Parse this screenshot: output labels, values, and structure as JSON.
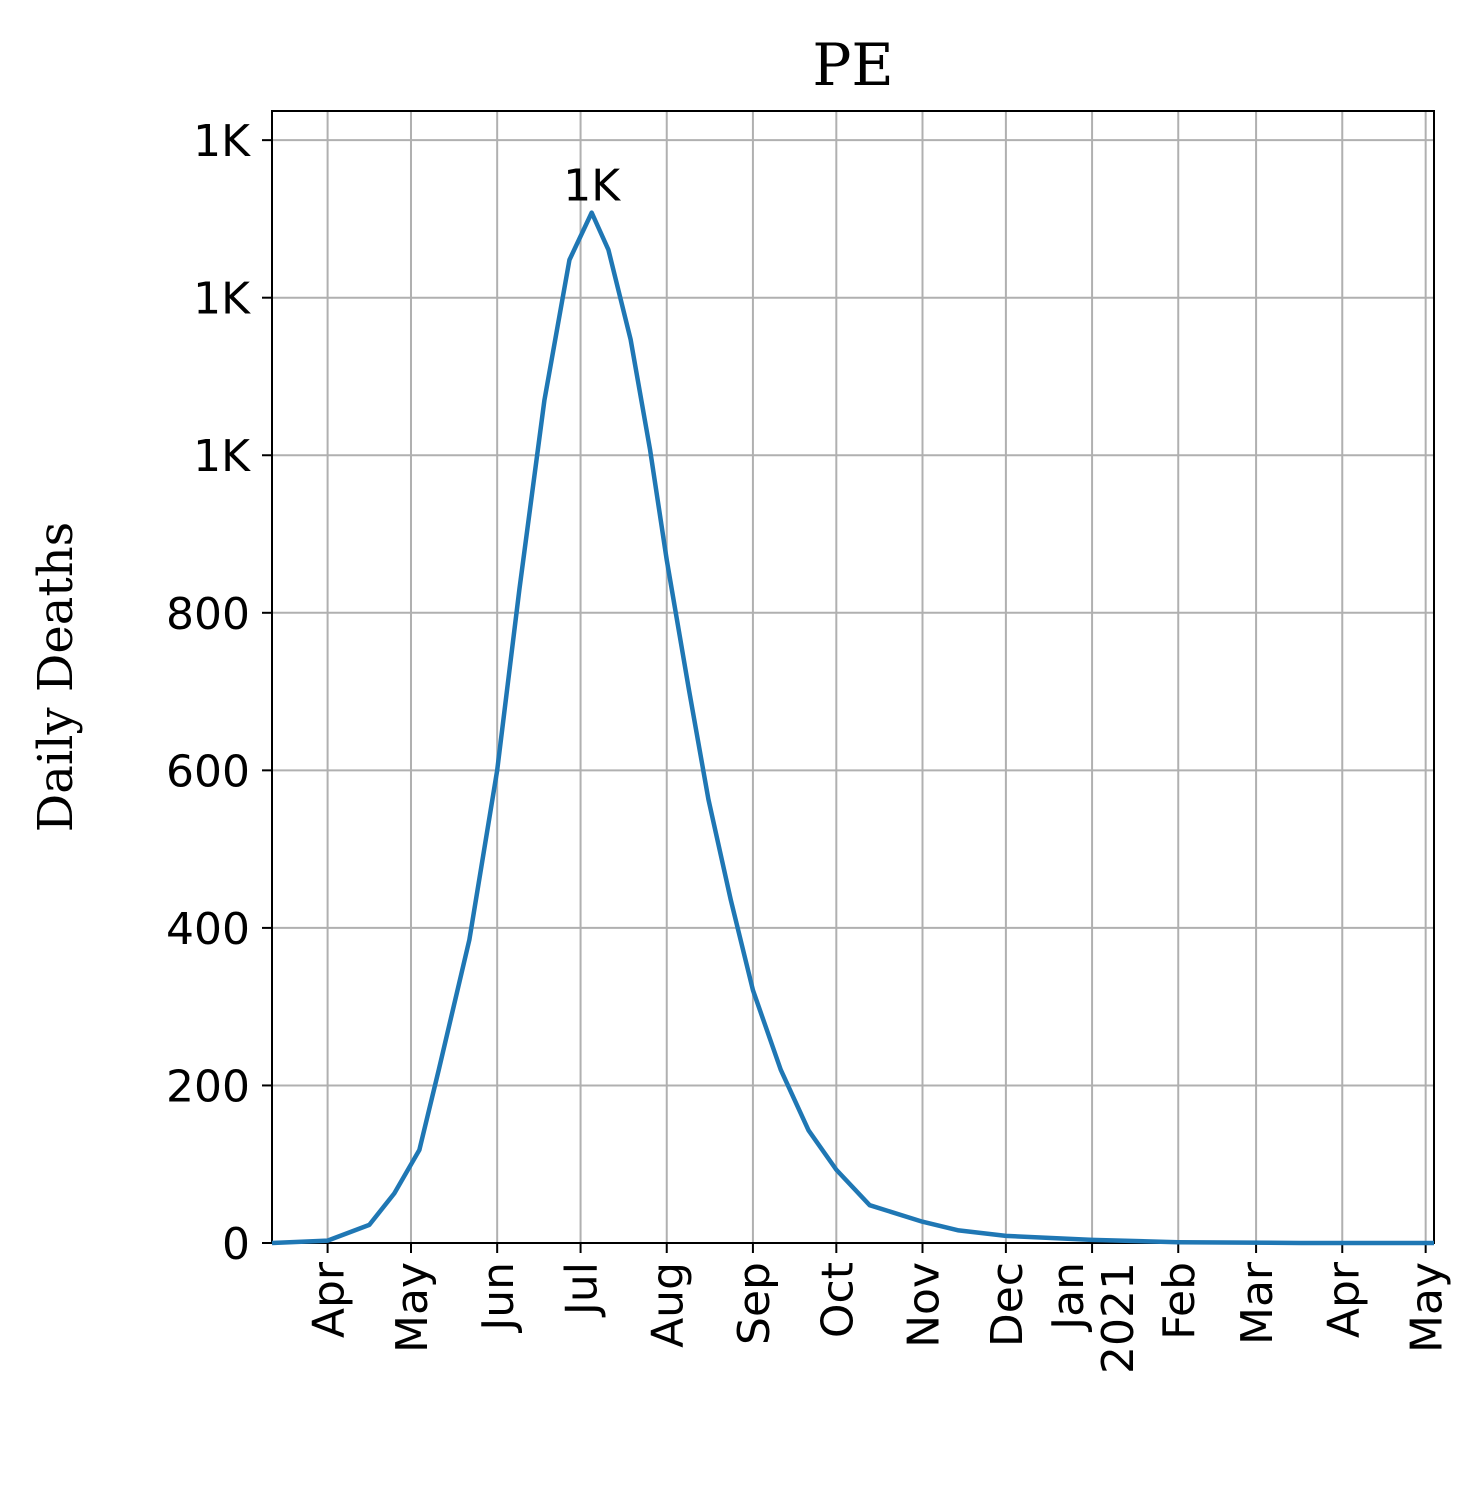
{
  "chart_data": {
    "type": "line",
    "title": "PE",
    "y_label": "Daily Deaths",
    "x": [
      -20,
      0,
      15,
      24,
      33,
      40,
      51,
      61,
      69,
      78,
      87,
      95,
      101,
      109,
      116,
      122,
      130,
      137,
      145,
      153,
      163,
      173,
      183,
      195,
      214,
      227,
      244,
      275,
      306,
      350,
      398
    ],
    "series": [
      {
        "color": "#1f77b4",
        "values": [
          0,
          3,
          23,
          63,
          118,
          220,
          385,
          600,
          830,
          1070,
          1248,
          1308,
          1261,
          1147,
          1007,
          867,
          702,
          563,
          436,
          321,
          220,
          143,
          93,
          48,
          27,
          16,
          9,
          4,
          1,
          0,
          0
        ]
      }
    ],
    "xlim": [
      -20,
      398
    ],
    "xticks": [
      {
        "value": 0,
        "label": "Apr"
      },
      {
        "value": 30,
        "label": "May"
      },
      {
        "value": 61,
        "label": "Jun"
      },
      {
        "value": 91,
        "label": "Jul"
      },
      {
        "value": 122,
        "label": "Aug"
      },
      {
        "value": 153,
        "label": "Sep"
      },
      {
        "value": 183,
        "label": "Oct"
      },
      {
        "value": 214,
        "label": "Nov"
      },
      {
        "value": 244,
        "label": "Dec"
      },
      {
        "value": 275,
        "label": "Jan\n2021"
      },
      {
        "value": 306,
        "label": "Feb"
      },
      {
        "value": 334,
        "label": "Mar"
      },
      {
        "value": 365,
        "label": "Apr"
      },
      {
        "value": 395,
        "label": "May"
      }
    ],
    "ylim": [
      0,
      1437
    ],
    "yticks": [
      0,
      200,
      400,
      600,
      800,
      {
        "value": 1000,
        "label": "1K"
      },
      {
        "value": 1200,
        "label": "1K"
      },
      {
        "value": 1400,
        "label": "1K"
      }
    ],
    "grid": true,
    "peak_annotation": {
      "x": 95,
      "value": 1308,
      "label": "1K"
    }
  }
}
